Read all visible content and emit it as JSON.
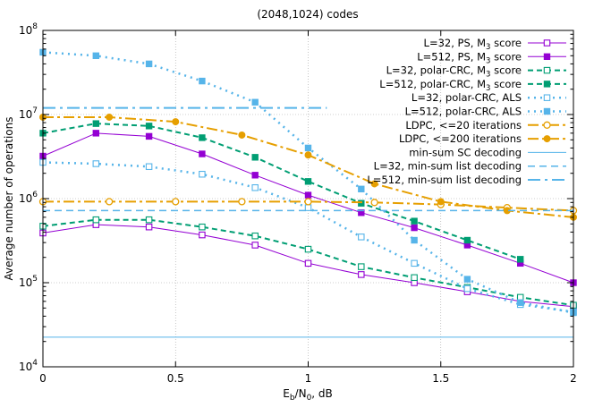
{
  "chart_data": {
    "type": "line",
    "title": "(2048,1024) codes",
    "xlabel": {
      "base": "E",
      "sub1": "b",
      "mid": "/N",
      "sub2": "0",
      "tail": ", dB"
    },
    "ylabel": "Average number of operations",
    "xlim": [
      0,
      2
    ],
    "ylim": [
      10000,
      100000000
    ],
    "yscale": "log",
    "grid": true,
    "legend_position": "top-right",
    "x_ticks": [
      {
        "value": 0,
        "label": "0"
      },
      {
        "value": 0.5,
        "label": "0.5"
      },
      {
        "value": 1,
        "label": "1"
      },
      {
        "value": 1.5,
        "label": "1.5"
      },
      {
        "value": 2,
        "label": "2"
      }
    ],
    "y_ticks": [
      {
        "value": 10000,
        "base": "10",
        "exp": "4"
      },
      {
        "value": 100000,
        "base": "10",
        "exp": "5"
      },
      {
        "value": 1000000,
        "base": "10",
        "exp": "6"
      },
      {
        "value": 10000000,
        "base": "10",
        "exp": "7"
      },
      {
        "value": 100000000,
        "base": "10",
        "exp": "8"
      }
    ],
    "series": [
      {
        "name": "L=32, PS, M3 score",
        "label_main": "L=32, PS, M",
        "label_sub": "3",
        "label_tail": " score",
        "color": "#9400d3",
        "dash": "",
        "width": 1,
        "marker": "square-open",
        "x": [
          0,
          0.2,
          0.4,
          0.6,
          0.8,
          1.0,
          1.2,
          1.4,
          1.6,
          1.8,
          2.0
        ],
        "y": [
          390000,
          490000,
          460000,
          370000,
          280000,
          170000,
          125000,
          100000,
          78000,
          60000,
          52000
        ]
      },
      {
        "name": "L=512, PS, M3 score",
        "label_main": "L=512, PS, M",
        "label_sub": "3",
        "label_tail": " score",
        "color": "#9400d3",
        "dash": "",
        "width": 1,
        "marker": "square-filled",
        "x": [
          0,
          0.2,
          0.4,
          0.6,
          0.8,
          1.0,
          1.2,
          1.4,
          1.6,
          1.8,
          2.0
        ],
        "y": [
          3200000,
          6000000,
          5500000,
          3400000,
          1900000,
          1100000,
          680000,
          450000,
          280000,
          170000,
          100000
        ]
      },
      {
        "name": "L=32, polar-CRC, M3 score",
        "label_main": "L=32, polar-CRC, M",
        "label_sub": "3",
        "label_tail": " score",
        "color": "#009e73",
        "dash": "6,4",
        "width": 2,
        "marker": "square-open",
        "x": [
          0,
          0.2,
          0.4,
          0.6,
          0.8,
          1.0,
          1.2,
          1.4,
          1.6,
          1.8,
          2.0
        ],
        "y": [
          470000,
          560000,
          560000,
          460000,
          360000,
          250000,
          155000,
          115000,
          88000,
          67000,
          54000
        ]
      },
      {
        "name": "L=512, polar-CRC, M3 score",
        "label_main": "L=512, polar-CRC, M",
        "label_sub": "3",
        "label_tail": " score",
        "color": "#009e73",
        "dash": "6,4",
        "width": 2,
        "marker": "square-filled",
        "x": [
          0,
          0.2,
          0.4,
          0.6,
          0.8,
          1.0,
          1.2,
          1.4,
          1.6,
          1.8
        ],
        "y": [
          6000000,
          7800000,
          7300000,
          5300000,
          3100000,
          1600000,
          880000,
          540000,
          320000,
          190000
        ]
      },
      {
        "name": "L=32, polar-CRC, ALS",
        "label_main": "L=32, polar-CRC, ALS",
        "label_sub": "",
        "label_tail": "",
        "color": "#56b4e9",
        "dash": "2,5",
        "width": 2.5,
        "marker": "square-open",
        "x": [
          0,
          0.2,
          0.4,
          0.6,
          0.8,
          1.0,
          1.2,
          1.4,
          1.6,
          1.8,
          2.0
        ],
        "y": [
          2700000,
          2600000,
          2400000,
          1950000,
          1350000,
          780000,
          350000,
          170000,
          85000,
          55000,
          45000
        ]
      },
      {
        "name": "L=512, polar-CRC, ALS",
        "label_main": "L=512, polar-CRC, ALS",
        "label_sub": "",
        "label_tail": "",
        "color": "#56b4e9",
        "dash": "2,5",
        "width": 2.5,
        "marker": "square-filled",
        "x": [
          0,
          0.2,
          0.4,
          0.6,
          0.8,
          1.0,
          1.2,
          1.4,
          1.6,
          1.8,
          2.0
        ],
        "y": [
          55000000,
          50000000,
          40000000,
          25000000,
          14000000,
          4000000,
          1300000,
          320000,
          110000,
          58000,
          44000
        ]
      },
      {
        "name": "LDPC, <=20 iterations",
        "label_main": "LDPC, <=20 iterations",
        "label_sub": "",
        "label_tail": "",
        "color": "#e69f00",
        "dash": "12,4,3,4",
        "width": 2,
        "marker": "circle-open",
        "x": [
          0,
          0.25,
          0.5,
          0.75,
          1.0,
          1.25,
          1.5,
          1.75,
          2.0
        ],
        "y": [
          920000,
          920000,
          920000,
          920000,
          920000,
          900000,
          850000,
          780000,
          720000
        ]
      },
      {
        "name": "LDPC, <=200 iterations",
        "label_main": "LDPC, <=200 iterations",
        "label_sub": "",
        "label_tail": "",
        "color": "#e69f00",
        "dash": "12,4,3,4",
        "width": 2,
        "marker": "circle-filled",
        "x": [
          0,
          0.25,
          0.5,
          0.75,
          1.0,
          1.25,
          1.5,
          1.75,
          2.0
        ],
        "y": [
          9300000,
          9300000,
          8200000,
          5700000,
          3300000,
          1500000,
          920000,
          720000,
          600000
        ]
      },
      {
        "name": "min-sum SC decoding",
        "label_main": "min-sum SC decoding",
        "label_sub": "",
        "label_tail": "",
        "color": "#56b4e9",
        "dash": "",
        "width": 1,
        "marker": "none",
        "x": [
          0,
          2
        ],
        "y": [
          22500,
          22500
        ]
      },
      {
        "name": "L=32, min-sum list decoding",
        "label_main": "L=32, min-sum list decoding",
        "label_sub": "",
        "label_tail": "",
        "color": "#56b4e9",
        "dash": "8,5",
        "width": 1.5,
        "marker": "none",
        "x": [
          0,
          2
        ],
        "y": [
          720000,
          720000
        ]
      },
      {
        "name": "L=512, min-sum list decoding",
        "label_main": "L=512, min-sum list decoding",
        "label_sub": "",
        "label_tail": "",
        "color": "#56b4e9",
        "dash": "14,5,3,5",
        "width": 2,
        "marker": "none",
        "x": [
          0,
          1.07
        ],
        "y": [
          12000000,
          12000000
        ]
      }
    ]
  }
}
